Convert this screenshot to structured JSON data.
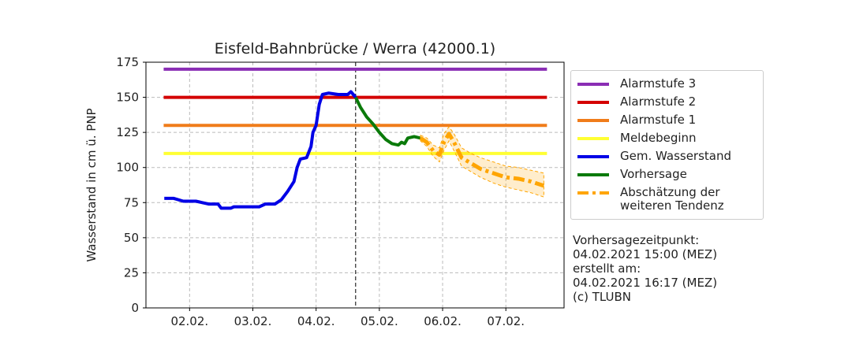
{
  "chart_data": {
    "type": "line",
    "title": "Eisfeld-Bahnbrücke / Werra (42000.1)",
    "ylabel": "Wasserstand in cm ü. PNP",
    "xlim": [
      1.31,
      7.92
    ],
    "ylim": [
      0,
      175
    ],
    "xticks": [
      {
        "value": 2,
        "label": "02.02."
      },
      {
        "value": 3,
        "label": "03.02."
      },
      {
        "value": 4,
        "label": "04.02."
      },
      {
        "value": 5,
        "label": "05.02."
      },
      {
        "value": 6,
        "label": "06.02."
      },
      {
        "value": 7,
        "label": "07.02."
      }
    ],
    "yticks": [
      0,
      25,
      50,
      75,
      100,
      125,
      150,
      175
    ],
    "grid": true,
    "forecast_time_x": 4.625,
    "series": [
      {
        "name": "Alarmstufe 3",
        "color": "#8a2db4",
        "style": "solid",
        "x": [
          1.59,
          7.65
        ],
        "values": [
          170,
          170
        ]
      },
      {
        "name": "Alarmstufe 2",
        "color": "#d40000",
        "style": "solid",
        "x": [
          1.59,
          7.65
        ],
        "values": [
          150,
          150
        ]
      },
      {
        "name": "Alarmstufe 1",
        "color": "#f07c1a",
        "style": "solid",
        "x": [
          1.59,
          7.65
        ],
        "values": [
          130,
          130
        ]
      },
      {
        "name": "Meldebeginn",
        "color": "#ffff33",
        "style": "solid",
        "x": [
          1.59,
          7.65
        ],
        "values": [
          110,
          110
        ]
      },
      {
        "name": "Gem. Wasserstand",
        "color": "#0000e6",
        "style": "solid",
        "x": [
          1.6,
          1.75,
          1.9,
          2.1,
          2.2,
          2.3,
          2.45,
          2.5,
          2.65,
          2.7,
          3.0,
          3.1,
          3.2,
          3.35,
          3.45,
          3.55,
          3.65,
          3.7,
          3.75,
          3.85,
          3.92,
          3.95,
          4.0,
          4.05,
          4.1,
          4.2,
          4.35,
          4.5,
          4.55,
          4.625
        ],
        "values": [
          78,
          78,
          76,
          76,
          75,
          74,
          74,
          71,
          71,
          72,
          72,
          72,
          74,
          74,
          77,
          83,
          90,
          100,
          106,
          107,
          115,
          125,
          130,
          145,
          152,
          153,
          152,
          152,
          154,
          150
        ]
      },
      {
        "name": "Vorhersage",
        "color": "#0a7a0a",
        "style": "solid",
        "x": [
          4.625,
          4.7,
          4.8,
          4.9,
          5.0,
          5.1,
          5.2,
          5.3,
          5.35,
          5.4,
          5.45,
          5.55,
          5.65
        ],
        "values": [
          150,
          143,
          136,
          131,
          125,
          120,
          117,
          116,
          118,
          117,
          121,
          122,
          121
        ]
      },
      {
        "name": "Abschätzung der weiteren Tendenz",
        "color": "#ffa500",
        "style": "dashed",
        "x": [
          5.65,
          5.75,
          5.85,
          5.95,
          6.02,
          6.1,
          6.18,
          6.3,
          6.45,
          6.6,
          6.8,
          7.0,
          7.2,
          7.4,
          7.6
        ],
        "values": [
          121,
          118,
          112,
          109,
          118,
          124,
          118,
          107,
          103,
          99,
          96,
          93,
          92,
          90,
          87
        ],
        "upper": [
          123,
          121,
          116,
          114,
          124,
          129,
          124,
          114,
          110,
          107,
          104,
          101,
          100,
          98,
          96
        ],
        "lower": [
          119,
          115,
          108,
          104,
          112,
          119,
          112,
          101,
          97,
          93,
          89,
          86,
          84,
          82,
          79
        ]
      }
    ],
    "annotations": [
      "Vorhersagezeitpunkt:",
      "04.02.2021 15:00 (MEZ)",
      "erstellt am:",
      "04.02.2021 16:17 (MEZ)",
      "(c) TLUBN"
    ]
  }
}
